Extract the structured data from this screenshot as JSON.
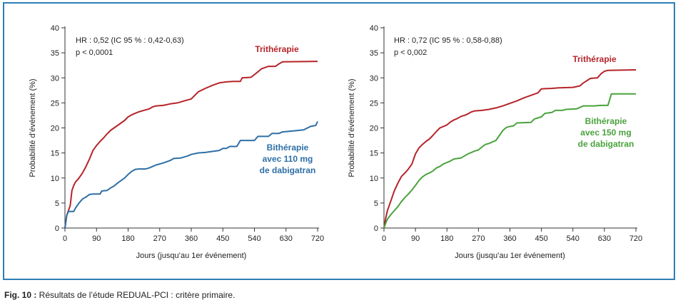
{
  "caption": {
    "label": "Fig. 10 :",
    "text": " Résultats de l’étude REDUAL-PCI : critère primaire."
  },
  "colors": {
    "frame": "#2e7eb6",
    "red": "#b5242a",
    "blue": "#2e6fa6",
    "green": "#4aa23d",
    "text": "#222222"
  },
  "chart_data": [
    {
      "type": "line",
      "xlabel": "Jours (jusqu’au 1er événement)",
      "ylabel": "Probabilité d’événement (%)",
      "xlim": [
        0,
        720
      ],
      "ylim": [
        0,
        40
      ],
      "xticks": [
        0,
        90,
        180,
        270,
        360,
        450,
        540,
        630,
        720
      ],
      "yticks": [
        0,
        5,
        10,
        15,
        20,
        25,
        30,
        35,
        40
      ],
      "stats": [
        "HR : 0,52 (IC 95 % : 0,42-0,63)",
        "p < 0,0001"
      ],
      "series": [
        {
          "name": "Trithérapie",
          "label_lines": [
            "Trithérapie"
          ],
          "color": "#b5242a",
          "points": [
            [
              0,
              0
            ],
            [
              5,
              2.5
            ],
            [
              10,
              3.5
            ],
            [
              15,
              4.5
            ],
            [
              20,
              7.5
            ],
            [
              25,
              8.5
            ],
            [
              30,
              9.2
            ],
            [
              40,
              10
            ],
            [
              50,
              11
            ],
            [
              60,
              12.3
            ],
            [
              70,
              13.8
            ],
            [
              80,
              15.5
            ],
            [
              90,
              16.5
            ],
            [
              100,
              17.3
            ],
            [
              110,
              18
            ],
            [
              120,
              18.8
            ],
            [
              130,
              19.5
            ],
            [
              140,
              20
            ],
            [
              150,
              20.5
            ],
            [
              160,
              21
            ],
            [
              170,
              21.5
            ],
            [
              180,
              22.2
            ],
            [
              190,
              22.6
            ],
            [
              200,
              22.9
            ],
            [
              210,
              23.2
            ],
            [
              220,
              23.4
            ],
            [
              230,
              23.6
            ],
            [
              240,
              23.8
            ],
            [
              250,
              24.2
            ],
            [
              260,
              24.4
            ],
            [
              280,
              24.5
            ],
            [
              300,
              24.8
            ],
            [
              320,
              25
            ],
            [
              340,
              25.4
            ],
            [
              360,
              25.8
            ],
            [
              370,
              26.5
            ],
            [
              380,
              27.2
            ],
            [
              400,
              27.9
            ],
            [
              420,
              28.5
            ],
            [
              440,
              29
            ],
            [
              460,
              29.2
            ],
            [
              480,
              29.3
            ],
            [
              500,
              29.3
            ],
            [
              505,
              30
            ],
            [
              530,
              30.1
            ],
            [
              550,
              31.2
            ],
            [
              560,
              31.8
            ],
            [
              580,
              32.3
            ],
            [
              600,
              32.3
            ],
            [
              610,
              32.8
            ],
            [
              620,
              33.2
            ],
            [
              720,
              33.3
            ]
          ]
        },
        {
          "name": "Bithérapie avec 110 mg de dabigatran",
          "label_lines": [
            "Bithérapie",
            "avec 110 mg",
            "de dabigatran"
          ],
          "color": "#2e6fa6",
          "points": [
            [
              0,
              0
            ],
            [
              5,
              2.5
            ],
            [
              10,
              3.3
            ],
            [
              25,
              3.3
            ],
            [
              30,
              4
            ],
            [
              40,
              5
            ],
            [
              50,
              5.8
            ],
            [
              60,
              6.2
            ],
            [
              70,
              6.7
            ],
            [
              80,
              6.8
            ],
            [
              100,
              6.8
            ],
            [
              105,
              7.4
            ],
            [
              120,
              7.5
            ],
            [
              130,
              8
            ],
            [
              140,
              8.4
            ],
            [
              150,
              9
            ],
            [
              160,
              9.5
            ],
            [
              170,
              10
            ],
            [
              180,
              10.7
            ],
            [
              190,
              11.3
            ],
            [
              200,
              11.7
            ],
            [
              210,
              11.8
            ],
            [
              230,
              11.8
            ],
            [
              240,
              12
            ],
            [
              250,
              12.3
            ],
            [
              260,
              12.6
            ],
            [
              280,
              13
            ],
            [
              300,
              13.5
            ],
            [
              310,
              13.9
            ],
            [
              330,
              14
            ],
            [
              350,
              14.4
            ],
            [
              360,
              14.7
            ],
            [
              380,
              15
            ],
            [
              400,
              15.1
            ],
            [
              420,
              15.3
            ],
            [
              440,
              15.5
            ],
            [
              450,
              15.9
            ],
            [
              460,
              15.9
            ],
            [
              470,
              16.3
            ],
            [
              490,
              16.3
            ],
            [
              500,
              17.5
            ],
            [
              540,
              17.5
            ],
            [
              550,
              18.3
            ],
            [
              580,
              18.3
            ],
            [
              590,
              18.9
            ],
            [
              610,
              18.9
            ],
            [
              620,
              19.2
            ],
            [
              650,
              19.4
            ],
            [
              680,
              19.6
            ],
            [
              700,
              20.3
            ],
            [
              715,
              20.5
            ],
            [
              720,
              21.3
            ]
          ]
        }
      ],
      "legend": "labels near curves"
    },
    {
      "type": "line",
      "xlabel": "Jours (jusqu’au 1er événement)",
      "ylabel": "Probabilité d’événement (%)",
      "xlim": [
        0,
        720
      ],
      "ylim": [
        0,
        40
      ],
      "xticks": [
        0,
        90,
        180,
        270,
        360,
        450,
        540,
        630,
        720
      ],
      "yticks": [
        0,
        5,
        10,
        15,
        20,
        25,
        30,
        35,
        40
      ],
      "stats": [
        "HR : 0,72 (IC 95 % : 0,58-0,88)",
        "p < 0,002"
      ],
      "series": [
        {
          "name": "Trithérapie",
          "label_lines": [
            "Trithérapie"
          ],
          "color": "#b5242a",
          "points": [
            [
              0,
              0
            ],
            [
              5,
              2
            ],
            [
              10,
              3.5
            ],
            [
              20,
              5.5
            ],
            [
              30,
              7.5
            ],
            [
              40,
              9
            ],
            [
              50,
              10.3
            ],
            [
              60,
              11
            ],
            [
              70,
              11.8
            ],
            [
              80,
              12.8
            ],
            [
              90,
              14.8
            ],
            [
              100,
              16
            ],
            [
              110,
              16.7
            ],
            [
              120,
              17.3
            ],
            [
              130,
              17.8
            ],
            [
              140,
              18.5
            ],
            [
              150,
              19.3
            ],
            [
              160,
              20
            ],
            [
              170,
              20.3
            ],
            [
              180,
              20.6
            ],
            [
              190,
              21.2
            ],
            [
              200,
              21.6
            ],
            [
              210,
              21.9
            ],
            [
              220,
              22.3
            ],
            [
              230,
              22.5
            ],
            [
              240,
              22.8
            ],
            [
              250,
              23.2
            ],
            [
              260,
              23.4
            ],
            [
              280,
              23.5
            ],
            [
              300,
              23.7
            ],
            [
              320,
              24
            ],
            [
              340,
              24.4
            ],
            [
              360,
              24.9
            ],
            [
              380,
              25.4
            ],
            [
              400,
              26
            ],
            [
              420,
              26.5
            ],
            [
              440,
              27
            ],
            [
              450,
              27.8
            ],
            [
              480,
              27.9
            ],
            [
              500,
              28
            ],
            [
              540,
              28.1
            ],
            [
              560,
              28.4
            ],
            [
              570,
              29
            ],
            [
              590,
              29.9
            ],
            [
              610,
              30
            ],
            [
              620,
              30.8
            ],
            [
              630,
              31.3
            ],
            [
              640,
              31.5
            ],
            [
              720,
              31.6
            ]
          ]
        },
        {
          "name": "Bithérapie avec 150 mg de dabigatran",
          "label_lines": [
            "Bithérapie",
            "avec 150 mg",
            "de dabigatran"
          ],
          "color": "#4aa23d",
          "points": [
            [
              0,
              0
            ],
            [
              5,
              1
            ],
            [
              10,
              1.8
            ],
            [
              20,
              2.7
            ],
            [
              30,
              3.5
            ],
            [
              40,
              4.3
            ],
            [
              50,
              5.3
            ],
            [
              60,
              6.1
            ],
            [
              70,
              6.8
            ],
            [
              80,
              7.6
            ],
            [
              90,
              8.5
            ],
            [
              100,
              9.5
            ],
            [
              110,
              10.2
            ],
            [
              120,
              10.7
            ],
            [
              130,
              11
            ],
            [
              140,
              11.4
            ],
            [
              150,
              12
            ],
            [
              160,
              12.3
            ],
            [
              170,
              12.8
            ],
            [
              180,
              13.1
            ],
            [
              190,
              13.4
            ],
            [
              200,
              13.8
            ],
            [
              210,
              13.9
            ],
            [
              220,
              14
            ],
            [
              230,
              14.4
            ],
            [
              240,
              14.8
            ],
            [
              250,
              15.1
            ],
            [
              260,
              15.4
            ],
            [
              270,
              15.6
            ],
            [
              280,
              16.2
            ],
            [
              290,
              16.7
            ],
            [
              300,
              16.9
            ],
            [
              320,
              17.5
            ],
            [
              330,
              18.5
            ],
            [
              340,
              19.5
            ],
            [
              350,
              20.1
            ],
            [
              360,
              20.3
            ],
            [
              370,
              20.4
            ],
            [
              380,
              21
            ],
            [
              420,
              21.1
            ],
            [
              430,
              21.8
            ],
            [
              450,
              22.2
            ],
            [
              460,
              22.9
            ],
            [
              480,
              23.1
            ],
            [
              490,
              23.5
            ],
            [
              510,
              23.5
            ],
            [
              520,
              23.7
            ],
            [
              550,
              23.8
            ],
            [
              570,
              24.4
            ],
            [
              600,
              24.4
            ],
            [
              620,
              24.5
            ],
            [
              640,
              24.5
            ],
            [
              650,
              26.8
            ],
            [
              720,
              26.8
            ]
          ]
        }
      ],
      "legend": "labels near curves"
    }
  ]
}
